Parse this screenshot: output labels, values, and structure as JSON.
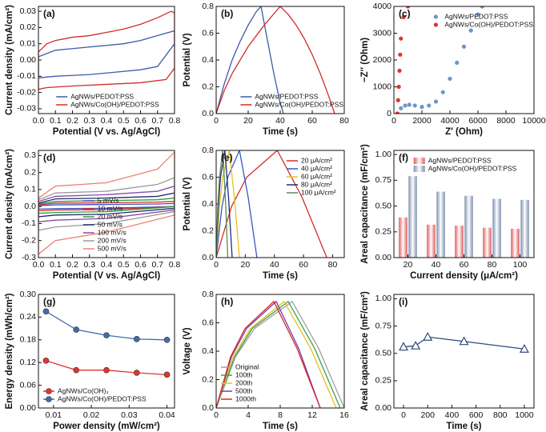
{
  "chart_data": [
    {
      "type": "line",
      "label": "(a)",
      "xlabel": "Potential (V vs. Ag/AgCl)",
      "ylabel": "Current density (mA/cm²)",
      "legend": "lower center",
      "xlim": [
        0,
        0.8
      ],
      "ylim": [
        -0.033,
        0.033
      ],
      "xticks": [
        {
          "value": 0,
          "label": "0.0"
        },
        0.1,
        0.2,
        0.3,
        0.4,
        0.5,
        0.6,
        0.7,
        0.8
      ],
      "yticks": [
        -0.03,
        -0.02,
        -0.01,
        {
          "value": 0,
          "label": "0.00"
        },
        0.01,
        0.02,
        0.03
      ],
      "series": [
        {
          "name": "AgNWs/PEDOT:PSS",
          "color": "#3b5aa8",
          "x": [
            0,
            0.1,
            0.2,
            0.3,
            0.4,
            0.5,
            0.6,
            0.7,
            0.8,
            0.8,
            0.7,
            0.6,
            0.5,
            0.4,
            0.3,
            0.2,
            0.1,
            0,
            0
          ],
          "values": [
            0.002,
            0.006,
            0.007,
            0.008,
            0.009,
            0.01,
            0.012,
            0.015,
            0.018,
            0.01,
            -0.004,
            -0.006,
            -0.007,
            -0.008,
            -0.009,
            -0.0095,
            -0.01,
            -0.011,
            0.002
          ]
        },
        {
          "name": "AgNWs/Co(OH)/PEDOT:PSS",
          "color": "#d42a2a",
          "x": [
            0,
            0.05,
            0.1,
            0.2,
            0.3,
            0.4,
            0.5,
            0.6,
            0.7,
            0.78,
            0.8,
            0.8,
            0.75,
            0.6,
            0.4,
            0.2,
            0.05,
            0,
            0
          ],
          "values": [
            0.005,
            0.01,
            0.012,
            0.014,
            0.015,
            0.017,
            0.019,
            0.022,
            0.026,
            0.03,
            0.029,
            -0.005,
            -0.012,
            -0.014,
            -0.015,
            -0.016,
            -0.017,
            -0.018,
            0.005
          ]
        }
      ]
    },
    {
      "type": "line",
      "label": "(b)",
      "xlabel": "Time (s)",
      "ylabel": "Potential (V)",
      "legend": "lower right",
      "xlim": [
        0,
        80
      ],
      "ylim": [
        0,
        0.8
      ],
      "xticks": [
        0,
        20,
        40,
        60,
        80
      ],
      "yticks": [
        {
          "value": 0,
          "label": "0.0"
        },
        0.2,
        0.4,
        0.6,
        0.8
      ],
      "series": [
        {
          "name": "AgNWs/PEDOT:PSS",
          "color": "#3b5aa8",
          "x": [
            0,
            5,
            10,
            15,
            20,
            25,
            28,
            32,
            36,
            40,
            42
          ],
          "values": [
            0,
            0.22,
            0.4,
            0.54,
            0.66,
            0.76,
            0.8,
            0.55,
            0.3,
            0.08,
            0
          ]
        },
        {
          "name": "AgNWs/Co(OH)/PEDOT:PSS",
          "color": "#d42a2a",
          "x": [
            0,
            5,
            10,
            20,
            30,
            40,
            45,
            50,
            55,
            60,
            65,
            70,
            74
          ],
          "values": [
            0,
            0.17,
            0.3,
            0.5,
            0.66,
            0.8,
            0.74,
            0.66,
            0.56,
            0.44,
            0.3,
            0.14,
            0
          ]
        }
      ]
    },
    {
      "type": "scatter",
      "label": "(c)",
      "xlabel": "Z′ (Ohm)",
      "ylabel": "−Z″ (Ohm)",
      "legend": "upper right",
      "xlim": [
        0,
        10000
      ],
      "ylim": [
        0,
        4000
      ],
      "xticks": [
        0,
        2000,
        4000,
        6000,
        8000,
        10000
      ],
      "yticks": [
        0,
        1000,
        2000,
        3000,
        4000
      ],
      "series": [
        {
          "name": "AgNWs/PEDOT:PSS",
          "color": "#6f95c8",
          "x": [
            250,
            500,
            800,
            1100,
            1500,
            2000,
            2500,
            3000,
            3500,
            4000,
            4500,
            5000,
            5500,
            6000,
            6300
          ],
          "values": [
            0,
            200,
            300,
            330,
            300,
            250,
            300,
            450,
            800,
            1300,
            1900,
            2500,
            3100,
            3700,
            4000
          ]
        },
        {
          "name": "AgNWs/Co(OH)/PEDOT:PSS",
          "color": "#e0352f",
          "x": [
            250,
            300,
            350,
            400,
            450,
            500,
            700,
            1000
          ],
          "values": [
            0,
            500,
            1000,
            1600,
            2200,
            2800,
            3600,
            4000
          ]
        }
      ]
    },
    {
      "type": "line",
      "label": "(d)",
      "xlabel": "Potential (V vs. Ag/AgCl)",
      "ylabel": "Current density (mA/cm²)",
      "legend": "lower center",
      "xlim": [
        0,
        0.8
      ],
      "ylim": [
        -0.3,
        0.33
      ],
      "xticks": [
        {
          "value": 0,
          "label": "0.0"
        },
        0.1,
        0.2,
        0.3,
        0.4,
        0.5,
        0.6,
        0.7,
        0.8
      ],
      "yticks": [
        -0.3,
        -0.2,
        -0.1,
        {
          "value": 0,
          "label": "0.0"
        },
        0.1,
        0.2,
        0.3
      ],
      "x": [
        0,
        0.1,
        0.4,
        0.7,
        0.8,
        0.8,
        0.4,
        0.1,
        0,
        0
      ],
      "series": [
        {
          "name": "5 mV/s",
          "color": "#3a55c8",
          "values": [
            0.005,
            0.01,
            0.012,
            0.015,
            0.018,
            0,
            -0.01,
            -0.012,
            -0.015,
            0.005
          ]
        },
        {
          "name": "10 mV/s",
          "color": "#d42a2a",
          "values": [
            0.01,
            0.02,
            0.022,
            0.026,
            0.03,
            0,
            -0.018,
            -0.02,
            -0.025,
            0.01
          ]
        },
        {
          "name": "20 mV/s",
          "color": "#2e9a3a",
          "values": [
            0.015,
            0.03,
            0.035,
            0.04,
            0.05,
            0,
            -0.03,
            -0.035,
            -0.04,
            0.015
          ]
        },
        {
          "name": "50 mV/s",
          "color": "#1f2f6e",
          "values": [
            0.02,
            0.045,
            0.05,
            0.06,
            0.08,
            -0.01,
            -0.045,
            -0.05,
            -0.06,
            0.02
          ]
        },
        {
          "name": "100 mV/s",
          "color": "#8a4aa8",
          "values": [
            0.03,
            0.06,
            0.07,
            0.09,
            0.12,
            -0.02,
            -0.07,
            -0.08,
            -0.09,
            0.03
          ]
        },
        {
          "name": "200 mV/s",
          "color": "#9a9a9a",
          "values": [
            0.04,
            0.08,
            0.09,
            0.13,
            0.17,
            -0.03,
            -0.1,
            -0.12,
            -0.14,
            0.04
          ]
        },
        {
          "name": "500 mV/s",
          "color": "#f08070",
          "values": [
            0.05,
            0.12,
            0.14,
            0.22,
            0.32,
            -0.05,
            -0.15,
            -0.2,
            -0.28,
            0.05
          ]
        }
      ]
    },
    {
      "type": "line",
      "label": "(e)",
      "xlabel": "Time (s)",
      "ylabel": "Potential (V)",
      "legend": "upper right",
      "xlim": [
        0,
        88
      ],
      "ylim": [
        0,
        0.8
      ],
      "xticks": [
        0,
        20,
        40,
        60,
        80
      ],
      "yticks": [
        {
          "value": 0,
          "label": "0.0"
        },
        0.2,
        0.4,
        0.6,
        0.8
      ],
      "series": [
        {
          "name": "20 μA/cm²",
          "color": "#d42a2a",
          "x": [
            0,
            10.5,
            21,
            42,
            59,
            76
          ],
          "values": [
            0,
            0.38,
            0.6,
            0.8,
            0.45,
            0
          ]
        },
        {
          "name": "40 μA/cm²",
          "color": "#3a55c8",
          "x": [
            0,
            4,
            8,
            16,
            22,
            28
          ],
          "values": [
            0,
            0.38,
            0.6,
            0.8,
            0.45,
            0
          ]
        },
        {
          "name": "60 μA/cm²",
          "color": "#e8c020",
          "x": [
            0,
            2.3,
            4.5,
            9,
            12.5,
            16
          ],
          "values": [
            0,
            0.38,
            0.6,
            0.8,
            0.45,
            0
          ]
        },
        {
          "name": "80 μA/cm²",
          "color": "#1f2f6e",
          "x": [
            0,
            1.5,
            3,
            6,
            8.5,
            11
          ],
          "values": [
            0,
            0.38,
            0.6,
            0.8,
            0.45,
            0
          ]
        },
        {
          "name": "100 μA/cm²",
          "color": "#5a8a5a",
          "x": [
            0,
            1.1,
            2.3,
            4.5,
            6.3,
            8
          ],
          "values": [
            0,
            0.38,
            0.6,
            0.8,
            0.45,
            0
          ]
        }
      ]
    },
    {
      "type": "bar",
      "label": "(f)",
      "xlabel": "Current density (μA/cm²)",
      "ylabel": "Areal capacitance (mF/cm²)",
      "legend": "upper center",
      "categories": [
        "20",
        "40",
        "60",
        "80",
        "100"
      ],
      "ylim": [
        0,
        1.04
      ],
      "yticks": [
        {
          "value": 0,
          "label": "0.00"
        },
        0.25,
        {
          "value": 0.5,
          "label": "0.50"
        },
        0.75,
        {
          "value": 1,
          "label": "1.00"
        }
      ],
      "series": [
        {
          "name": "AgNWs/PEDOT:PSS",
          "color": "#e05a5a",
          "values": [
            0.39,
            0.32,
            0.31,
            0.29,
            0.28
          ]
        },
        {
          "name": "AgNWs/Co(OH)/PEDOT:PSS",
          "color": "#7d8fb0",
          "values": [
            0.79,
            0.64,
            0.6,
            0.57,
            0.56
          ]
        }
      ]
    },
    {
      "type": "line",
      "label": "(g)",
      "xlabel": "Power density (mW/cm²)",
      "ylabel": "Energy density (mWh/cm²)",
      "legend": "lower left",
      "marker": "circle",
      "xlim": [
        0.006,
        0.042
      ],
      "ylim": [
        0,
        0.3
      ],
      "xticks": [
        0.01,
        0.02,
        0.03,
        0.04
      ],
      "yticks": [
        {
          "value": 0,
          "label": "0.00"
        },
        0.06,
        0.12,
        0.18,
        0.24,
        {
          "value": 0.3,
          "label": "0.30"
        }
      ],
      "x": [
        0.008,
        0.016,
        0.024,
        0.032,
        0.04
      ],
      "series": [
        {
          "name": "AgNWs/Co(OH)₂",
          "color": "#e0352f",
          "values": [
            0.125,
            0.1,
            0.1,
            0.093,
            0.088
          ]
        },
        {
          "name": "AgNWs/Co(OH)/PEDOT:PSS",
          "color": "#3f6ea8",
          "values": [
            0.255,
            0.207,
            0.192,
            0.182,
            0.18
          ]
        }
      ]
    },
    {
      "type": "line",
      "label": "(h)",
      "xlabel": "Time (s)",
      "ylabel": "Voltage (V)",
      "legend": "lower left",
      "xlim": [
        0,
        16
      ],
      "ylim": [
        0,
        0.8
      ],
      "xticks": [
        0,
        4,
        8,
        12,
        16
      ],
      "yticks": [
        {
          "value": 0,
          "label": "0.0"
        },
        0.2,
        0.4,
        0.6,
        0.8
      ],
      "series": [
        {
          "name": "Original",
          "color": "#a0a0a0",
          "x": [
            0,
            2.4,
            4.8,
            9.5,
            12.8,
            16
          ],
          "values": [
            0,
            0.36,
            0.56,
            0.75,
            0.42,
            0
          ]
        },
        {
          "name": "100th",
          "color": "#3aa050",
          "x": [
            0,
            2.3,
            4.5,
            9,
            12.3,
            15.5
          ],
          "values": [
            0,
            0.36,
            0.56,
            0.75,
            0.42,
            0
          ]
        },
        {
          "name": "200th",
          "color": "#e8c020",
          "x": [
            0,
            2.1,
            4.3,
            8.5,
            11.8,
            15
          ],
          "values": [
            0,
            0.36,
            0.56,
            0.75,
            0.42,
            0
          ]
        },
        {
          "name": "500th",
          "color": "#7a3aa8",
          "x": [
            0,
            1.9,
            3.8,
            7.5,
            10.3,
            13
          ],
          "values": [
            0,
            0.36,
            0.56,
            0.75,
            0.42,
            0
          ]
        },
        {
          "name": "1000th",
          "color": "#d42a2a",
          "x": [
            0,
            1.8,
            3.6,
            7.2,
            10.1,
            13
          ],
          "values": [
            0,
            0.36,
            0.56,
            0.75,
            0.42,
            0
          ]
        }
      ]
    },
    {
      "type": "line",
      "label": "(i)",
      "xlabel": "Time (s)",
      "ylabel": "Areal capacitance (mF/cm²)",
      "marker": "triangle",
      "xlim": [
        -80,
        1080
      ],
      "ylim": [
        0,
        1.04
      ],
      "xticks": [
        0,
        200,
        400,
        600,
        800,
        1000
      ],
      "yticks": [
        {
          "value": 0,
          "label": "0.00"
        },
        0.25,
        {
          "value": 0.5,
          "label": "0.50"
        },
        0.75,
        {
          "value": 1,
          "label": "1.00"
        }
      ],
      "x": [
        0,
        100,
        200,
        500,
        1000
      ],
      "series": [
        {
          "color": "#2f4a7a",
          "values": [
            0.56,
            0.57,
            0.65,
            0.61,
            0.54
          ]
        }
      ]
    }
  ]
}
